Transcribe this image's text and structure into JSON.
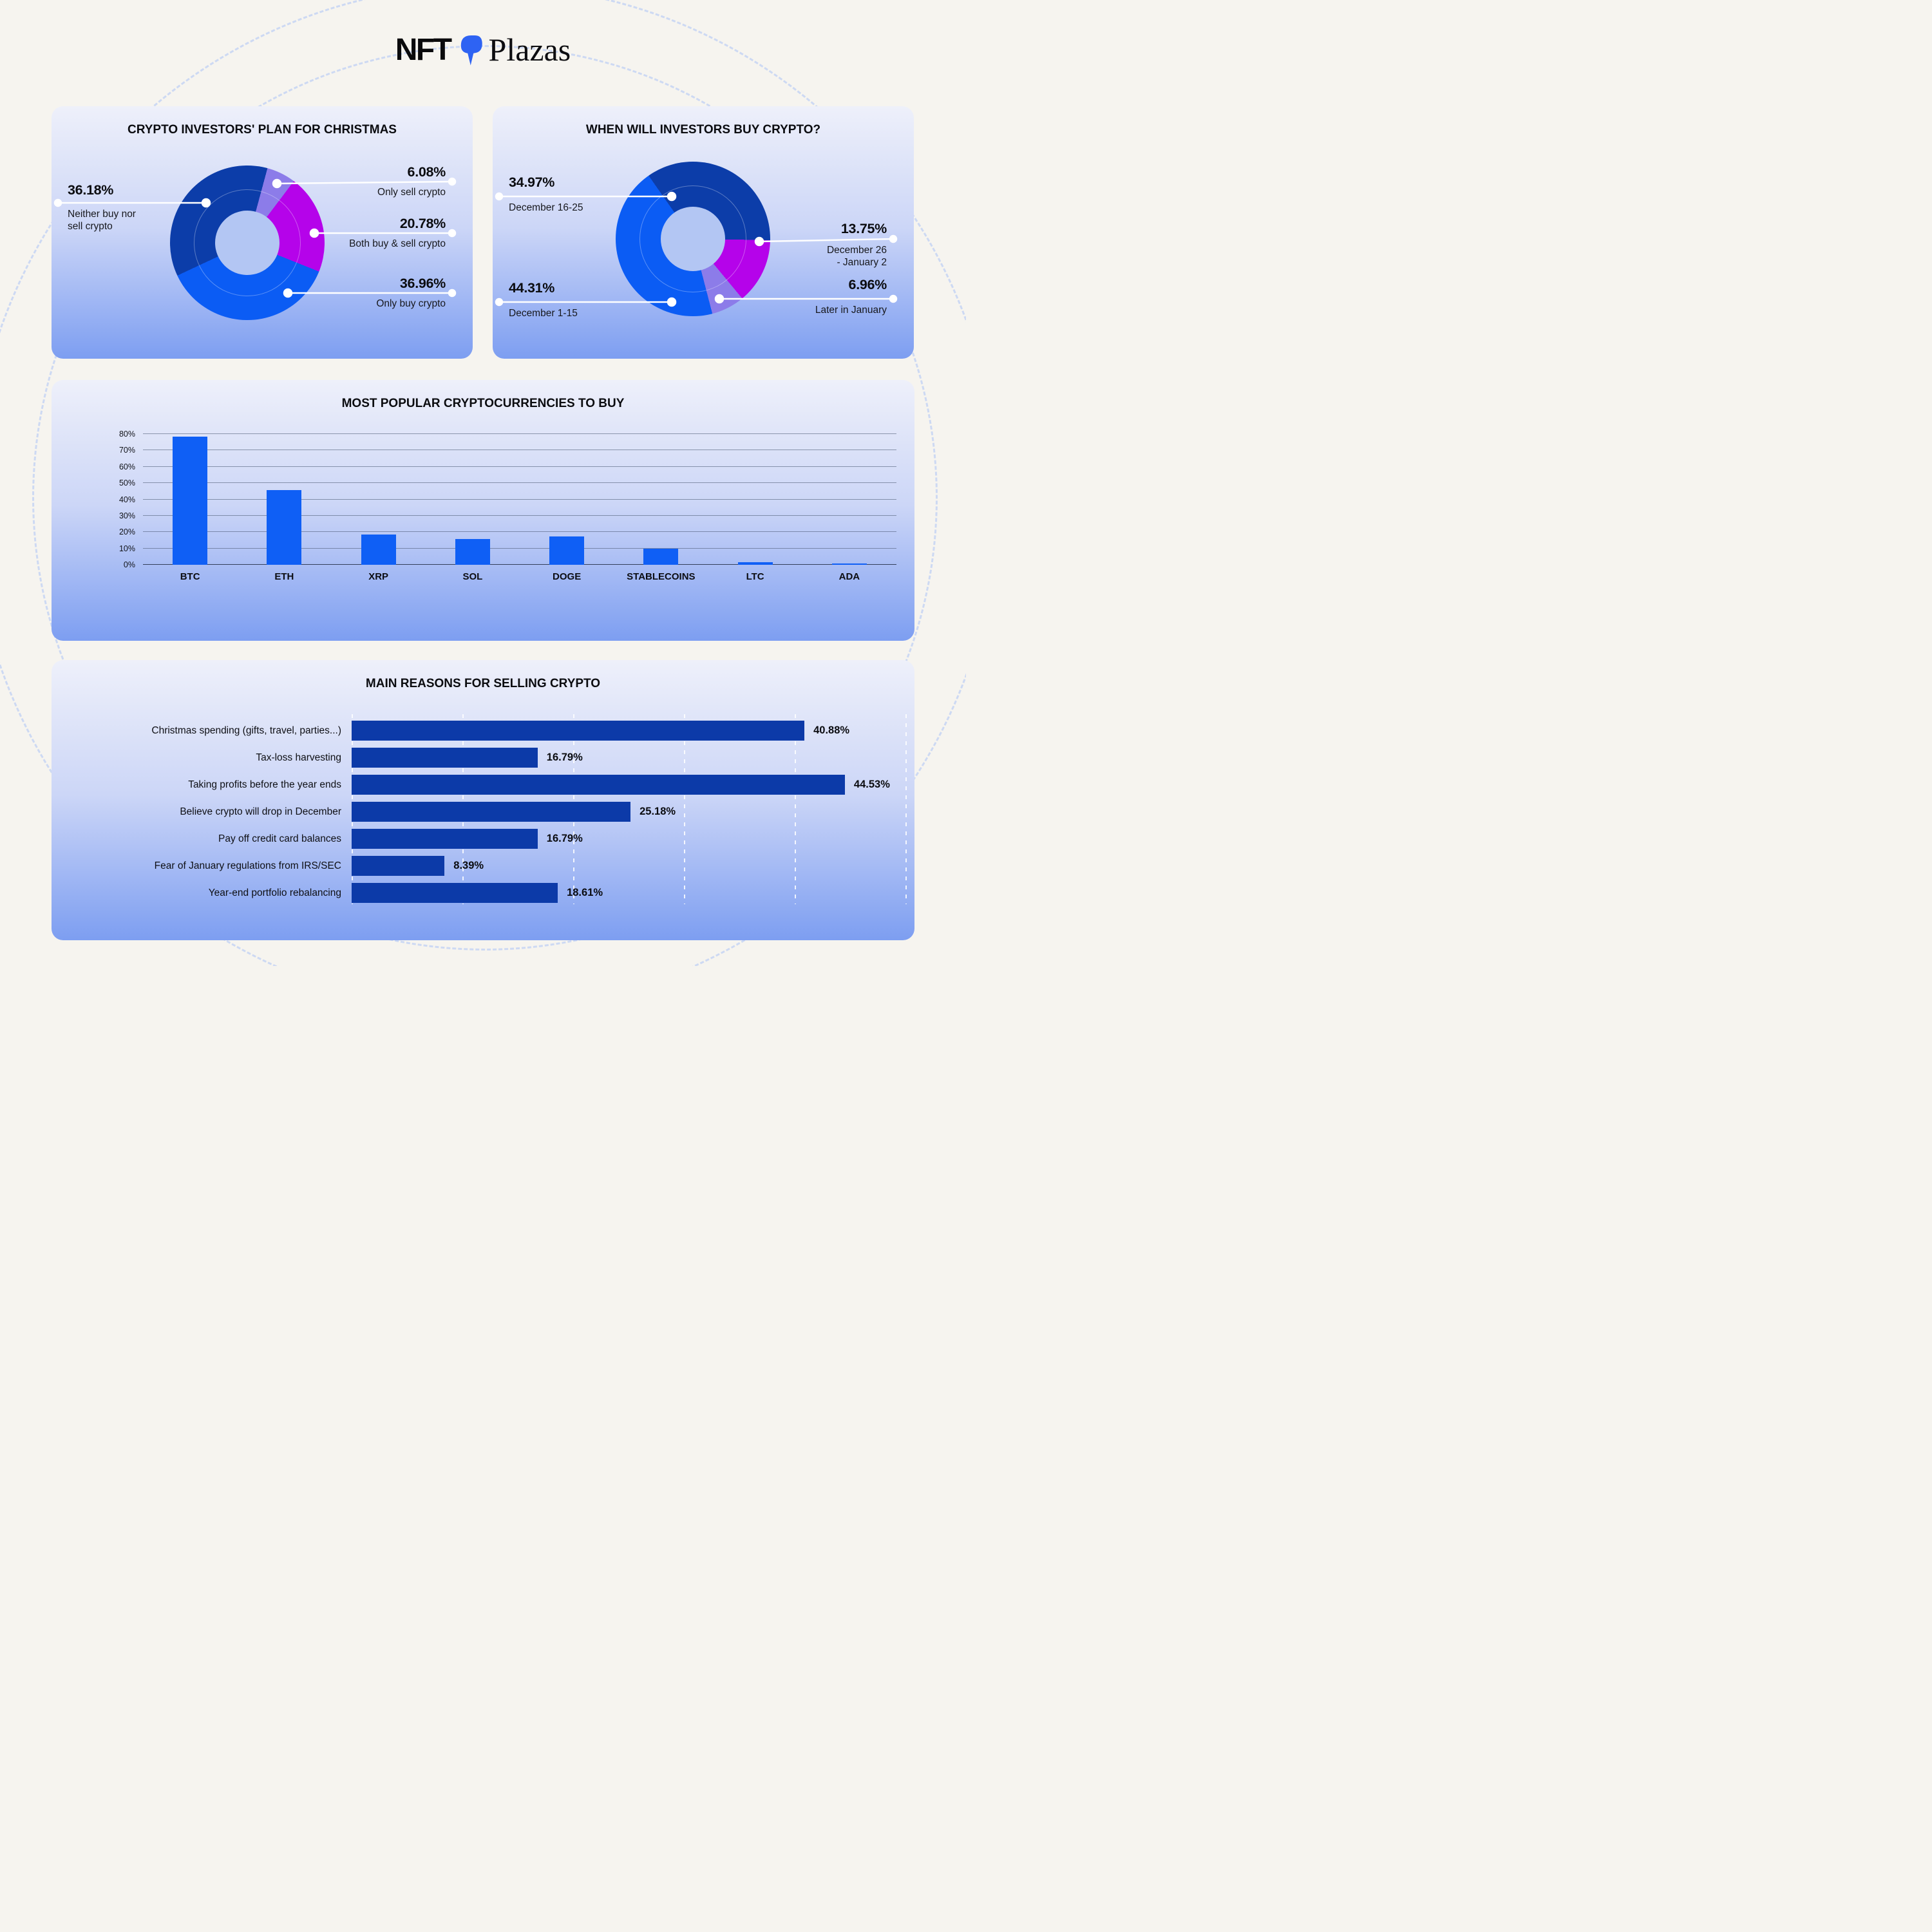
{
  "logo": {
    "left": "NFT",
    "right": "Plazas",
    "mark_color": "#2e63f3"
  },
  "colors": {
    "page_bg": "#f6f4ef",
    "card_top": "#eef0fa",
    "card_bottom": "#7d9ef1",
    "navy": "#0c3da9",
    "bright_blue": "#0b5cf4",
    "magenta": "#b503ea",
    "lavender": "#8c7ce9",
    "vbar_blue": "#0f5ff5",
    "hbar_navy": "#0c3aa8",
    "leader": "#ffffff"
  },
  "chart_data": [
    {
      "type": "pie",
      "subtype": "donut",
      "title": "CRYPTO INVESTORS' PLAN FOR CHRISTMAS",
      "start_angle": -115.1,
      "slices": [
        {
          "label": "Neither buy nor\nsell crypto",
          "value": 36.18,
          "value_label": "36.18%",
          "color": "#0c3da9"
        },
        {
          "label": "Only sell crypto",
          "value": 6.08,
          "value_label": "6.08%",
          "color": "#8c7ce9"
        },
        {
          "label": "Both buy & sell crypto",
          "value": 20.78,
          "value_label": "20.78%",
          "color": "#b503ea"
        },
        {
          "label": "Only buy crypto",
          "value": 36.96,
          "value_label": "36.96%",
          "color": "#0b5cf4"
        }
      ]
    },
    {
      "type": "pie",
      "subtype": "donut",
      "title": "WHEN WILL INVESTORS BUY CRYPTO?",
      "start_angle": -35,
      "slices": [
        {
          "label": "December 16-25",
          "value": 34.97,
          "value_label": "34.97%",
          "color": "#0c3da9"
        },
        {
          "label": "December 26\n- January 2",
          "value": 13.75,
          "value_label": "13.75%",
          "color": "#b503ea"
        },
        {
          "label": "Later in January",
          "value": 6.96,
          "value_label": "6.96%",
          "color": "#8c7ce9"
        },
        {
          "label": "December 1-15",
          "value": 44.31,
          "value_label": "44.31%",
          "color": "#0b5cf4"
        }
      ]
    },
    {
      "type": "bar",
      "title": "MOST POPULAR CRYPTOCURRENCIES TO BUY",
      "categories": [
        "BTC",
        "ETH",
        "XRP",
        "SOL",
        "DOGE",
        "STABLECOINS",
        "LTC",
        "ADA"
      ],
      "values": [
        78.5,
        45.9,
        18.5,
        15.7,
        17.4,
        10,
        1.5,
        0.8
      ],
      "ylim": [
        0,
        80
      ],
      "yticks": [
        "80%",
        "70%",
        "60%",
        "50%",
        "40%",
        "30%",
        "20%",
        "10%",
        "0%"
      ],
      "grid": true,
      "bar_color": "#0f5ff5"
    },
    {
      "type": "bar",
      "subtype": "horizontal",
      "title": "MAIN REASONS FOR SELLING CRYPTO",
      "xmax": 50,
      "grid_step": 10,
      "bar_color": "#0c3aa8",
      "rows": [
        {
          "label": "Christmas spending (gifts, travel, parties...)",
          "value": 40.88,
          "value_label": "40.88%"
        },
        {
          "label": "Tax-loss harvesting",
          "value": 16.79,
          "value_label": "16.79%"
        },
        {
          "label": "Taking profits before the year ends",
          "value": 44.53,
          "value_label": "44.53%"
        },
        {
          "label": "Believe crypto will drop in December",
          "value": 25.18,
          "value_label": "25.18%"
        },
        {
          "label": "Pay off credit card balances",
          "value": 16.79,
          "value_label": "16.79%"
        },
        {
          "label": "Fear of January regulations from IRS/SEC",
          "value": 8.39,
          "value_label": "8.39%"
        },
        {
          "label": "Year-end portfolio rebalancing",
          "value": 18.61,
          "value_label": "18.61%"
        }
      ]
    }
  ]
}
